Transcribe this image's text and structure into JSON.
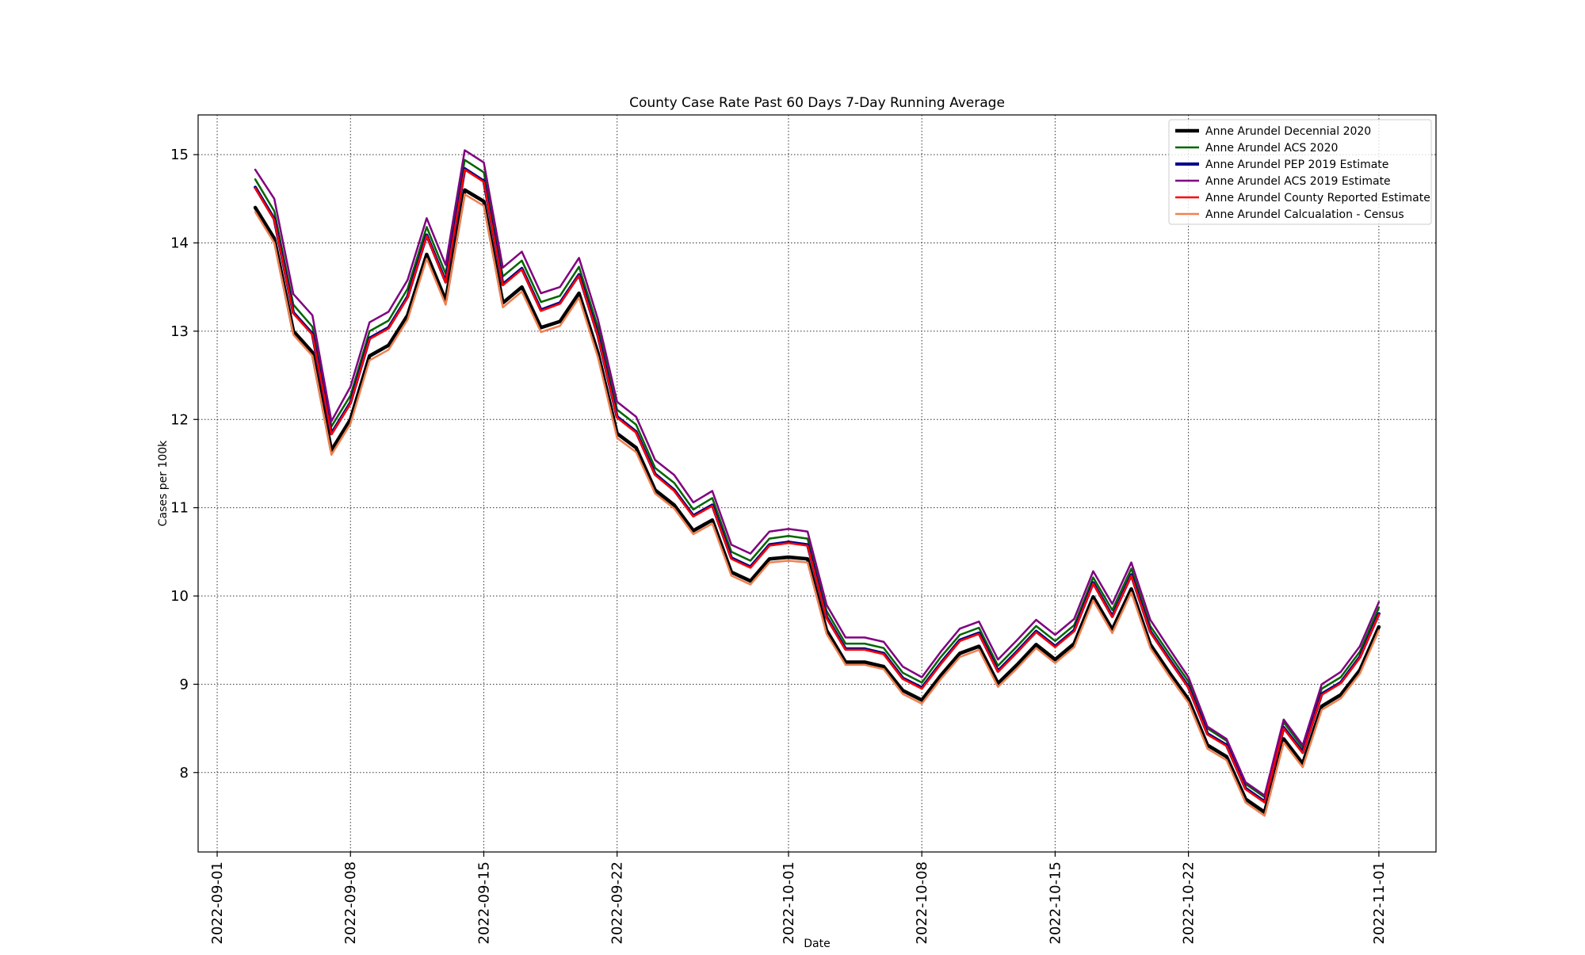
{
  "chart_data": {
    "type": "line",
    "title": "County Case Rate  Past 60 Days 7-Day Running Average",
    "xlabel": "Date",
    "ylabel": "Cases per 100k",
    "x_axis_type": "date",
    "xlim": [
      "2022-08-31",
      "2022-11-04"
    ],
    "ylim": [
      7.1,
      15.45
    ],
    "grid": true,
    "grid_style": "dotted",
    "legend_position": "top-right",
    "x_ticks": [
      "2022-09-01",
      "2022-09-08",
      "2022-09-15",
      "2022-09-22",
      "2022-10-01",
      "2022-10-08",
      "2022-10-15",
      "2022-10-22",
      "2022-11-01"
    ],
    "y_ticks": [
      "8",
      "9",
      "10",
      "11",
      "12",
      "13",
      "14",
      "15"
    ],
    "x": [
      "2022-09-03",
      "2022-09-04",
      "2022-09-05",
      "2022-09-06",
      "2022-09-07",
      "2022-09-08",
      "2022-09-09",
      "2022-09-10",
      "2022-09-11",
      "2022-09-12",
      "2022-09-13",
      "2022-09-14",
      "2022-09-15",
      "2022-09-16",
      "2022-09-17",
      "2022-09-18",
      "2022-09-19",
      "2022-09-20",
      "2022-09-21",
      "2022-09-22",
      "2022-09-23",
      "2022-09-24",
      "2022-09-25",
      "2022-09-26",
      "2022-09-27",
      "2022-09-28",
      "2022-09-29",
      "2022-09-30",
      "2022-10-01",
      "2022-10-02",
      "2022-10-03",
      "2022-10-04",
      "2022-10-05",
      "2022-10-06",
      "2022-10-07",
      "2022-10-08",
      "2022-10-09",
      "2022-10-10",
      "2022-10-11",
      "2022-10-12",
      "2022-10-13",
      "2022-10-14",
      "2022-10-15",
      "2022-10-16",
      "2022-10-17",
      "2022-10-18",
      "2022-10-19",
      "2022-10-20",
      "2022-10-21",
      "2022-10-22",
      "2022-10-23",
      "2022-10-24",
      "2022-10-25",
      "2022-10-26",
      "2022-10-27",
      "2022-10-28",
      "2022-10-29",
      "2022-10-30",
      "2022-10-31",
      "2022-11-01"
    ],
    "series": [
      {
        "name": "Anne Arundel Decennial 2020",
        "color": "#000000",
        "width": 4.5,
        "values": [
          14.4,
          14.05,
          13.0,
          12.76,
          11.65,
          12.0,
          12.72,
          12.84,
          13.18,
          13.87,
          13.35,
          14.6,
          14.47,
          13.32,
          13.5,
          13.04,
          13.11,
          13.43,
          12.75,
          11.84,
          11.68,
          11.2,
          11.03,
          10.74,
          10.86,
          10.27,
          10.17,
          10.42,
          10.44,
          10.42,
          9.61,
          9.25,
          9.25,
          9.2,
          8.93,
          8.82,
          9.1,
          9.35,
          9.43,
          9.01,
          9.22,
          9.45,
          9.28,
          9.46,
          9.99,
          9.62,
          10.08,
          9.45,
          9.13,
          8.83,
          8.31,
          8.18,
          7.7,
          7.55,
          8.38,
          8.1,
          8.75,
          8.88,
          9.16,
          9.65
        ]
      },
      {
        "name": "Anne Arundel ACS 2020",
        "color": "#006400",
        "width": 2.5,
        "values": [
          14.72,
          14.36,
          13.3,
          13.05,
          11.92,
          12.27,
          13.0,
          13.12,
          13.48,
          14.18,
          13.65,
          14.94,
          14.8,
          13.62,
          13.8,
          13.33,
          13.4,
          13.73,
          13.04,
          12.11,
          11.94,
          11.45,
          11.28,
          10.98,
          11.11,
          10.5,
          10.4,
          10.65,
          10.68,
          10.65,
          9.83,
          9.46,
          9.46,
          9.41,
          9.13,
          9.02,
          9.31,
          9.56,
          9.64,
          9.21,
          9.43,
          9.66,
          9.49,
          9.67,
          10.21,
          9.84,
          10.31,
          9.66,
          9.34,
          9.03,
          8.5,
          8.36,
          7.87,
          7.72,
          8.57,
          8.28,
          8.95,
          9.08,
          9.37,
          9.87
        ]
      },
      {
        "name": "Anne Arundel PEP 2019 Estimate",
        "color": "#00008b",
        "width": 4,
        "values": [
          14.63,
          14.27,
          13.21,
          12.97,
          11.84,
          12.19,
          12.92,
          13.04,
          13.39,
          14.09,
          13.56,
          14.84,
          14.7,
          13.53,
          13.71,
          13.24,
          13.32,
          13.64,
          12.95,
          12.03,
          11.86,
          11.38,
          11.2,
          10.91,
          11.03,
          10.43,
          10.33,
          10.58,
          10.61,
          10.58,
          9.76,
          9.4,
          9.4,
          9.35,
          9.07,
          8.96,
          9.24,
          9.5,
          9.58,
          9.15,
          9.37,
          9.6,
          9.43,
          9.61,
          10.15,
          9.77,
          10.24,
          9.6,
          9.28,
          8.97,
          8.44,
          8.31,
          7.82,
          7.67,
          8.51,
          8.23,
          8.89,
          9.02,
          9.31,
          9.8
        ]
      },
      {
        "name": "Anne Arundel ACS 2019 Estimate",
        "color": "#800080",
        "width": 2.5,
        "values": [
          14.83,
          14.5,
          13.42,
          13.18,
          11.98,
          12.37,
          13.1,
          13.22,
          13.58,
          14.28,
          13.75,
          15.05,
          14.91,
          13.72,
          13.9,
          13.43,
          13.5,
          13.83,
          13.13,
          12.2,
          12.03,
          11.54,
          11.37,
          11.06,
          11.19,
          10.58,
          10.48,
          10.73,
          10.76,
          10.73,
          9.9,
          9.53,
          9.53,
          9.48,
          9.2,
          9.08,
          9.37,
          9.63,
          9.71,
          9.28,
          9.5,
          9.73,
          9.56,
          9.74,
          10.28,
          9.91,
          10.38,
          9.73,
          9.4,
          9.08,
          8.52,
          8.38,
          7.89,
          7.74,
          8.6,
          8.31,
          9.0,
          9.14,
          9.43,
          9.93
        ]
      },
      {
        "name": "Anne Arundel County Reported Estimate",
        "color": "#ff0000",
        "width": 2.5,
        "values": [
          14.62,
          14.26,
          13.2,
          12.96,
          11.83,
          12.18,
          12.91,
          13.03,
          13.38,
          14.08,
          13.55,
          14.83,
          14.69,
          13.52,
          13.7,
          13.23,
          13.31,
          13.63,
          12.94,
          12.02,
          11.85,
          11.37,
          11.19,
          10.9,
          11.02,
          10.42,
          10.32,
          10.57,
          10.6,
          10.57,
          9.75,
          9.39,
          9.39,
          9.34,
          9.06,
          8.95,
          9.23,
          9.49,
          9.57,
          9.14,
          9.36,
          9.59,
          9.42,
          9.6,
          10.14,
          9.76,
          10.23,
          9.59,
          9.27,
          8.96,
          8.43,
          8.3,
          7.81,
          7.66,
          8.5,
          8.22,
          8.88,
          9.01,
          9.3,
          9.79
        ]
      },
      {
        "name": "Anne Arundel Calcualation - Census",
        "color": "#f08050",
        "width": 2.5,
        "values": [
          14.35,
          14.0,
          12.96,
          12.72,
          11.6,
          11.95,
          12.67,
          12.79,
          13.13,
          13.82,
          13.3,
          14.55,
          14.42,
          13.27,
          13.45,
          12.99,
          13.06,
          13.38,
          12.7,
          11.79,
          11.63,
          11.16,
          10.99,
          10.7,
          10.82,
          10.23,
          10.13,
          10.38,
          10.4,
          10.38,
          9.57,
          9.22,
          9.22,
          9.17,
          8.89,
          8.78,
          9.06,
          9.31,
          9.39,
          8.97,
          9.18,
          9.41,
          9.24,
          9.42,
          9.95,
          9.58,
          10.04,
          9.41,
          9.09,
          8.79,
          8.27,
          8.14,
          7.66,
          7.51,
          8.34,
          8.06,
          8.71,
          8.84,
          9.12,
          9.61
        ]
      }
    ]
  }
}
